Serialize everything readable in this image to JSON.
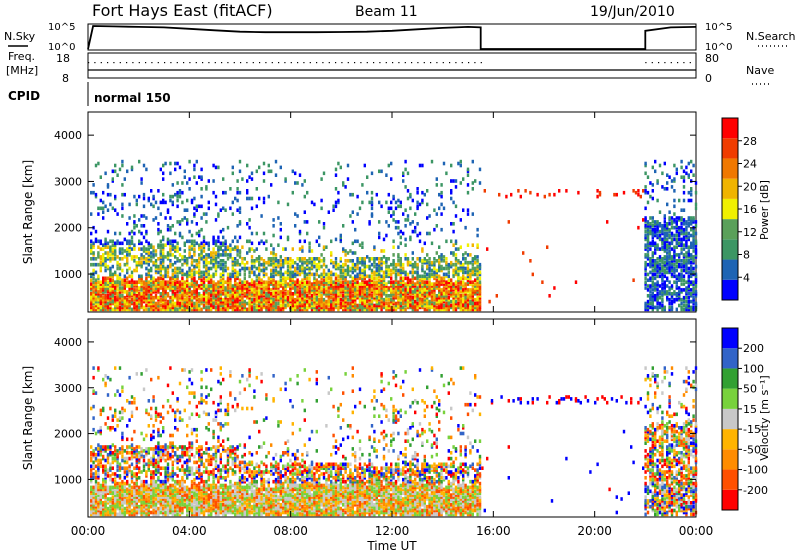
{
  "header": {
    "radar": "Fort Hays East (fitACF)",
    "beam": "Beam 11",
    "date": "19/Jun/2010"
  },
  "panel_labels": {
    "nsky": "N.Sky",
    "freq": "Freq.",
    "freq_unit": "[MHz]",
    "cpid": "CPID",
    "nsearch": "N.Search",
    "nave": "Nave",
    "cpid_value": "normal 150"
  },
  "colors": {
    "power": [
      "#0000ff",
      "#1e64b4",
      "#3c9664",
      "#5aa05a",
      "#f0f000",
      "#f0b400",
      "#f07800",
      "#f03c00",
      "#ff0000"
    ],
    "velocity": [
      "#ff0000",
      "#ff5000",
      "#ff8c00",
      "#ffb400",
      "#c8c8c8",
      "#78d23c",
      "#32a032",
      "#3264c8",
      "#0000ff"
    ],
    "line": "#000000"
  },
  "chart_data": [
    {
      "type": "line",
      "name": "noise-panel",
      "x_ticks": [
        "00:00",
        "04:00",
        "08:00",
        "12:00",
        "16:00",
        "20:00",
        "00:00"
      ],
      "left_axis": {
        "top": "10^5",
        "bottom": "10^0"
      },
      "right_axis": {
        "top": "10^5",
        "bottom": "10^0"
      },
      "series_sky_x_hours": [
        0.0,
        0.2,
        1.0,
        2.0,
        3.0,
        4.0,
        5.0,
        6.0,
        7.0,
        8.0,
        9.0,
        10.0,
        11.0,
        12.0,
        13.0,
        14.0,
        15.0,
        15.5,
        15.5,
        22.0,
        22.0,
        23.0,
        24.0
      ],
      "series_sky_y_log": [
        0.0,
        4.8,
        4.7,
        4.6,
        4.5,
        4.2,
        3.9,
        3.6,
        3.5,
        3.5,
        3.5,
        3.55,
        3.6,
        3.8,
        4.1,
        4.4,
        4.6,
        4.5,
        0.0,
        0.0,
        3.8,
        4.5,
        4.6
      ]
    },
    {
      "type": "scatter",
      "name": "freq-nave-panel",
      "left_axis": {
        "top": "18",
        "bottom": "8"
      },
      "right_axis": {
        "top": "80",
        "bottom": "0"
      },
      "freq_mhz": 10.5
    },
    {
      "type": "heatmap",
      "name": "power-panel",
      "xlabel": "",
      "ylabel": "Slant Range [km]",
      "x_ticks": [
        "00:00",
        "04:00",
        "08:00",
        "12:00",
        "16:00",
        "20:00",
        "00:00"
      ],
      "y_ticks": [
        1000,
        2000,
        3000,
        4000
      ],
      "ylim": [
        180,
        4500
      ],
      "xlim_hours": [
        0,
        24
      ],
      "colorbar": {
        "label": "Power [dB]",
        "ticks": [
          "4",
          "8",
          "12",
          "16",
          "20",
          "24",
          "28"
        ]
      }
    },
    {
      "type": "heatmap",
      "name": "velocity-panel",
      "xlabel": "Time UT",
      "ylabel": "Slant Range [km]",
      "x_ticks": [
        "00:00",
        "04:00",
        "08:00",
        "12:00",
        "16:00",
        "20:00",
        "00:00"
      ],
      "y_ticks": [
        1000,
        2000,
        3000,
        4000
      ],
      "ylim": [
        180,
        4500
      ],
      "xlim_hours": [
        0,
        24
      ],
      "colorbar": {
        "label": "Velocity [m s⁻¹]",
        "ticks": [
          "-200",
          "-100",
          "-50",
          "-15",
          "15",
          "50",
          "100",
          "200"
        ]
      }
    }
  ]
}
